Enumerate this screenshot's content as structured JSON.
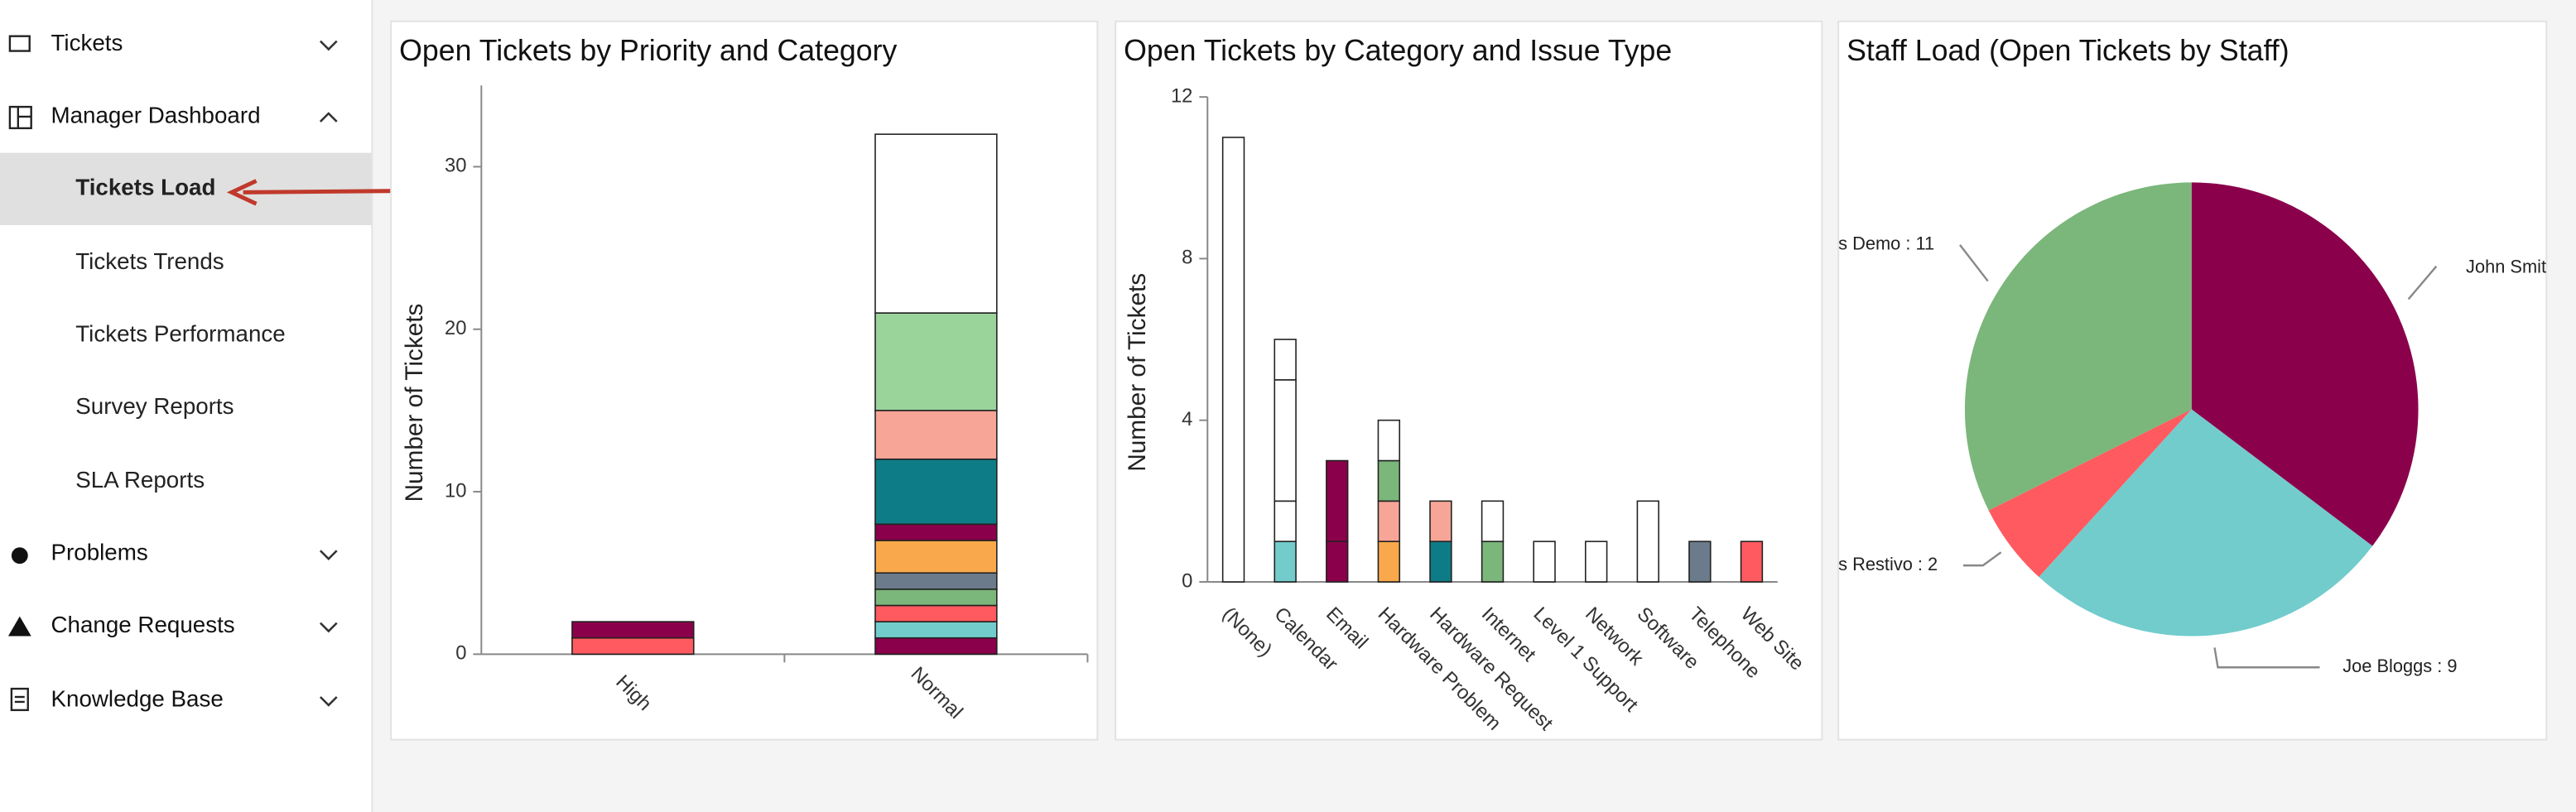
{
  "sidebar": {
    "items": [
      "Tickets",
      "Manager Dashboard",
      "Tickets Load",
      "Tickets Trends",
      "Tickets Performance",
      "Survey Reports",
      "SLA Reports",
      "Problems",
      "Change Requests",
      "Knowledge Base"
    ]
  },
  "chart_data": [
    {
      "type": "stacked-bar",
      "title": "Open Tickets by Priority and Category",
      "y_label": "Number of Tickets",
      "categories": [
        "High",
        "Normal"
      ],
      "ylim": [
        0,
        35
      ],
      "yticks": [
        0,
        10,
        20,
        30
      ],
      "series": [
        {
          "color": "#8b004b",
          "values": [
            0,
            1
          ]
        },
        {
          "color": "#72cccc",
          "values": [
            0,
            1
          ]
        },
        {
          "color": "#ff5a5f",
          "values": [
            1,
            1
          ]
        },
        {
          "color": "#7bb67b",
          "values": [
            0,
            1
          ]
        },
        {
          "color": "#6b7b8c",
          "values": [
            0,
            1
          ]
        },
        {
          "color": "#f9a94b",
          "values": [
            0,
            2
          ]
        },
        {
          "color": "#8b004b",
          "values": [
            1,
            1
          ]
        },
        {
          "color": "#0e7c86",
          "values": [
            0,
            4
          ]
        },
        {
          "color": "#f7a597",
          "values": [
            0,
            3
          ]
        },
        {
          "color": "#9bd49b",
          "values": [
            0,
            6
          ]
        },
        {
          "color": "#ffffff",
          "values": [
            0,
            11
          ]
        }
      ]
    },
    {
      "type": "stacked-bar",
      "title": "Open Tickets by Category and Issue Type",
      "y_label": "Number of Tickets",
      "categories": [
        "(None)",
        "Calendar",
        "Email",
        "Hardware Problem",
        "Hardware Request",
        "Internet",
        "Level 1 Support",
        "Network",
        "Software",
        "Telephone",
        "Web Site"
      ],
      "ylim": [
        0,
        12
      ],
      "yticks": [
        0,
        4,
        8,
        12
      ],
      "series": [
        {
          "colors": [
            "#ffffff",
            "#72cccc",
            "#8b004b",
            "#f9a94b",
            "#0e7c86",
            "#7bb67b",
            "#ffffff",
            "#ffffff",
            "#ffffff",
            "#6b7b8c",
            "#ff5a5f"
          ],
          "values": [
            11,
            1,
            1,
            1,
            1,
            1,
            1,
            1,
            2,
            1,
            1
          ]
        },
        {
          "colors": [
            null,
            "#ffffff",
            "#8b004b",
            "#f7a597",
            "#f7a597",
            "#ffffff",
            null,
            null,
            null,
            null,
            null
          ],
          "values": [
            null,
            1,
            2,
            1,
            1,
            1,
            null,
            null,
            null,
            null,
            null
          ]
        },
        {
          "colors": [
            null,
            "#ffffff",
            null,
            "#7bb67b",
            null,
            null,
            null,
            null,
            null,
            null,
            null
          ],
          "values": [
            null,
            3,
            null,
            1,
            null,
            null,
            null,
            null,
            null,
            null,
            null
          ]
        },
        {
          "colors": [
            null,
            "#ffffff",
            null,
            "#ffffff",
            null,
            null,
            null,
            null,
            null,
            null,
            null
          ],
          "values": [
            null,
            1,
            null,
            1,
            null,
            null,
            null,
            null,
            null,
            null,
            null
          ]
        }
      ]
    },
    {
      "type": "pie",
      "title": "Staff Load (Open Tickets by Staff)",
      "labels": [
        "John Smit",
        "Joe Bloggs : 9",
        "s Restivo : 2",
        "s Demo : 11"
      ],
      "values": [
        12,
        9,
        2,
        11
      ],
      "colors": [
        "#8b004b",
        "#72cccc",
        "#ff5a5f",
        "#7bb67b"
      ]
    }
  ]
}
